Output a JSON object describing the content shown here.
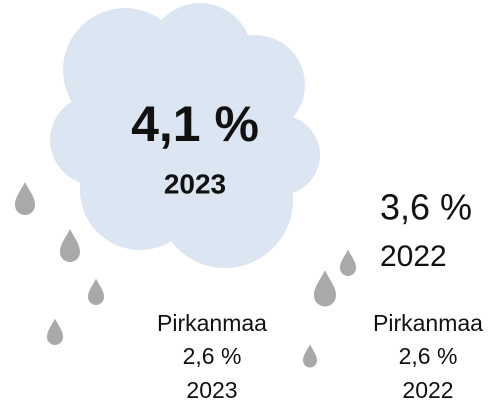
{
  "main": {
    "value": "4,1 %",
    "year": "2023"
  },
  "previous": {
    "value": "3,6 %",
    "year": "2022"
  },
  "regions": [
    {
      "name": "Pirkanmaa",
      "value": "2,6 %",
      "year": "2023"
    },
    {
      "name": "Pirkanmaa",
      "value": "2,6 %",
      "year": "2022"
    }
  ]
}
